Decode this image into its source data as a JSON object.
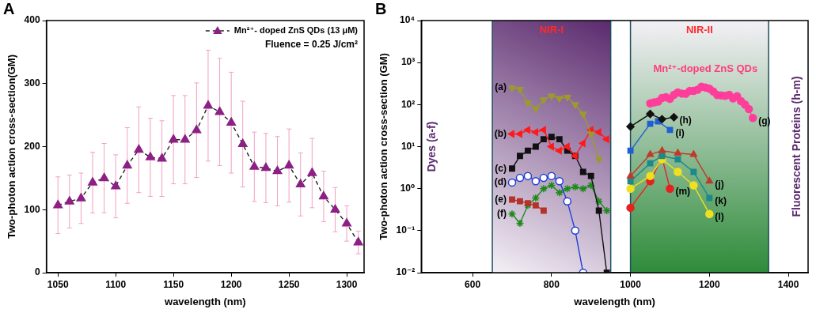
{
  "chart_data": [
    {
      "type": "line",
      "title": "A",
      "x_label": "wavelength (nm)",
      "y_label": "Two-photon action cross-section(GM)",
      "xlim": [
        1040,
        1315
      ],
      "xticks": [
        1050,
        1100,
        1150,
        1200,
        1250,
        1300
      ],
      "ylim": [
        0,
        400
      ],
      "yticks": [
        0,
        100,
        200,
        300,
        400
      ],
      "grid": false,
      "legend": "upper right",
      "annotation": "Fluence = 0.25 J/cm²",
      "series": [
        {
          "name": "Mn²⁺- doped ZnS QDs (13 μM)",
          "color": "#8e1f84",
          "marker": "triangle",
          "line_style": "dashed",
          "x": [
            1050,
            1060,
            1070,
            1080,
            1090,
            1100,
            1110,
            1120,
            1130,
            1140,
            1150,
            1160,
            1170,
            1180,
            1190,
            1200,
            1210,
            1220,
            1230,
            1240,
            1250,
            1260,
            1270,
            1280,
            1290,
            1300,
            1310
          ],
          "values": [
            107,
            113,
            118,
            143,
            150,
            137,
            170,
            195,
            183,
            181,
            211,
            211,
            226,
            265,
            255,
            238,
            204,
            168,
            166,
            161,
            170,
            140,
            158,
            121,
            100,
            78,
            48
          ],
          "errors": [
            45,
            42,
            40,
            48,
            55,
            50,
            60,
            68,
            62,
            60,
            70,
            70,
            75,
            88,
            85,
            80,
            68,
            55,
            55,
            55,
            58,
            50,
            55,
            40,
            35,
            28,
            18
          ]
        }
      ]
    },
    {
      "type": "line",
      "title": "B",
      "x_label": "wavelength (nm)",
      "y_label": "Two-photon action cross-section (GM)",
      "log": "y",
      "grid": false,
      "xlim": [
        470,
        1450
      ],
      "xticks": [
        600,
        800,
        1000,
        1200,
        1400
      ],
      "ylim": [
        0.01,
        10000
      ],
      "yticks": [
        {
          "value": 0.01,
          "label": "10⁻²"
        },
        {
          "value": 0.1,
          "label": "10⁻¹"
        },
        {
          "value": 1,
          "label": "10⁰"
        },
        {
          "value": 10,
          "label": "10¹"
        },
        {
          "value": 100,
          "label": "10²"
        },
        {
          "value": 1000,
          "label": "10³"
        },
        {
          "value": 10000,
          "label": "10⁴"
        }
      ],
      "regions": [
        {
          "name": "NIR-I",
          "xlim": [
            650,
            950
          ],
          "color": "#5b2a6e"
        },
        {
          "name": "NIR-II",
          "xlim": [
            1000,
            1350
          ],
          "color": "#2e8b3a"
        }
      ],
      "group_labels": [
        "Dyes (a-f)",
        "Fluorescent Proteins (h-m)"
      ],
      "annotations": [
        {
          "text": "Mn²⁺-doped ZnS QDs",
          "x": 1190,
          "y": 700
        }
      ],
      "series": [
        {
          "name": "(a)",
          "color": "#9c9a2e",
          "marker": "triangle-down",
          "line_style": "solid",
          "x": [
            700,
            720,
            740,
            760,
            780,
            800,
            820,
            840,
            860,
            880,
            900,
            920
          ],
          "values": [
            250,
            230,
            110,
            80,
            130,
            160,
            140,
            150,
            100,
            60,
            20,
            5
          ]
        },
        {
          "name": "(b)",
          "color": "#ff1a1a",
          "marker": "triangle-left",
          "line_style": "solid",
          "x": [
            700,
            720,
            740,
            760,
            780,
            800,
            820,
            840,
            860,
            880,
            900,
            920,
            940
          ],
          "values": [
            20,
            20,
            25,
            22,
            25,
            10,
            8,
            10,
            6,
            12,
            25,
            22,
            15
          ]
        },
        {
          "name": "(c)",
          "color": "#111111",
          "marker": "square",
          "line_style": "solid",
          "x": [
            700,
            720,
            740,
            760,
            780,
            800,
            820,
            840,
            860,
            880,
            900,
            920,
            940
          ],
          "values": [
            3,
            6,
            8,
            10,
            15,
            17,
            15,
            8,
            6,
            2.5,
            2,
            0.3,
            0.01
          ]
        },
        {
          "name": "(d)",
          "color": "#1f3fd6",
          "marker": "circle-open",
          "line_style": "solid",
          "x": [
            700,
            720,
            740,
            760,
            780,
            800,
            820,
            840,
            860,
            880
          ],
          "values": [
            1.4,
            1.8,
            2,
            1.5,
            1.8,
            2,
            1.5,
            0.5,
            0.1,
            0.01
          ]
        },
        {
          "name": "(e)",
          "color": "#b5322a",
          "marker": "square",
          "line_style": "solid",
          "x": [
            700,
            720,
            740,
            760,
            780
          ],
          "values": [
            0.55,
            0.5,
            0.45,
            0.4,
            0.3
          ]
        },
        {
          "name": "(f)",
          "color": "#1a8a1a",
          "marker": "star",
          "line_style": "solid",
          "x": [
            700,
            720,
            740,
            760,
            780,
            800,
            820,
            840,
            860,
            880,
            900,
            920,
            940
          ],
          "values": [
            0.25,
            0.15,
            0.4,
            0.6,
            1,
            1.2,
            0.8,
            1,
            1.1,
            1,
            1.2,
            0.5,
            0.3
          ]
        },
        {
          "name": "(g)",
          "color": "#ff3d9a",
          "marker": "circle",
          "line_style": "solid",
          "x": [
            1050,
            1060,
            1070,
            1080,
            1090,
            1100,
            1110,
            1120,
            1130,
            1140,
            1150,
            1160,
            1170,
            1180,
            1190,
            1200,
            1210,
            1220,
            1230,
            1240,
            1250,
            1260,
            1270,
            1280,
            1290,
            1300,
            1310
          ],
          "values": [
            107,
            113,
            118,
            143,
            150,
            137,
            170,
            195,
            183,
            181,
            211,
            211,
            226,
            265,
            255,
            238,
            204,
            168,
            166,
            161,
            170,
            140,
            158,
            121,
            100,
            78,
            48
          ]
        },
        {
          "name": "(h)",
          "color": "#111111",
          "marker": "diamond",
          "line_style": "solid",
          "x": [
            1000,
            1050,
            1080,
            1110
          ],
          "values": [
            30,
            60,
            45,
            50
          ]
        },
        {
          "name": "(i)",
          "color": "#1f5fd6",
          "marker": "square",
          "line_style": "solid",
          "x": [
            1000,
            1050,
            1070,
            1100
          ],
          "values": [
            8,
            35,
            40,
            25
          ]
        },
        {
          "name": "(j)",
          "color": "#c0392b",
          "marker": "triangle",
          "line_style": "solid",
          "x": [
            1000,
            1050,
            1080,
            1120,
            1160,
            1200
          ],
          "values": [
            2,
            6.5,
            8,
            7,
            6.5,
            1.5
          ]
        },
        {
          "name": "(k)",
          "color": "#1a8a8a",
          "marker": "square",
          "line_style": "solid",
          "x": [
            1000,
            1050,
            1080,
            1120,
            1160,
            1200
          ],
          "values": [
            1.5,
            4,
            6,
            5,
            2.5,
            0.6
          ]
        },
        {
          "name": "(l)",
          "color": "#f0e020",
          "marker": "circle",
          "line_style": "solid",
          "x": [
            1000,
            1050,
            1080,
            1120,
            1160,
            1200
          ],
          "values": [
            1,
            2,
            5,
            2.5,
            1.2,
            0.25
          ]
        },
        {
          "name": "(m)",
          "color": "#e82020",
          "marker": "circle",
          "line_style": "solid",
          "x": [
            1000,
            1050,
            1080,
            1100
          ],
          "values": [
            0.35,
            1.5,
            5.5,
            1
          ]
        }
      ]
    }
  ]
}
